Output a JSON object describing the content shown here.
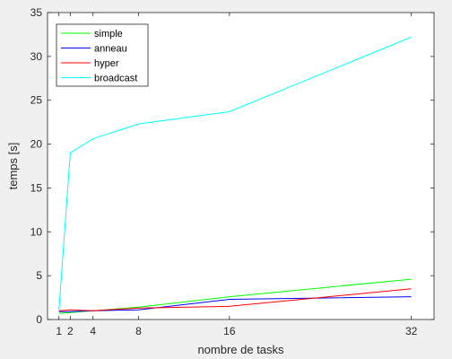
{
  "chart_data": {
    "type": "line",
    "title": "",
    "xlabel": "nombre de tasks",
    "ylabel": "temps [s]",
    "xlim": [
      0,
      34
    ],
    "ylim": [
      0,
      35
    ],
    "xticks": [
      1,
      2,
      4,
      8,
      16,
      32
    ],
    "yticks": [
      0,
      5,
      10,
      15,
      20,
      25,
      30,
      35
    ],
    "grid": false,
    "legend_position": "top-left",
    "x": [
      1,
      2,
      4,
      8,
      16,
      32
    ],
    "series": [
      {
        "name": "simple",
        "color": "#00ff00",
        "values": [
          0.7,
          0.8,
          1.0,
          1.4,
          2.6,
          4.6
        ]
      },
      {
        "name": "anneau",
        "color": "#0000ff",
        "values": [
          0.9,
          0.9,
          1.0,
          1.1,
          2.3,
          2.6
        ]
      },
      {
        "name": "hyper",
        "color": "#ff0000",
        "values": [
          1.0,
          1.1,
          1.0,
          1.3,
          1.5,
          3.5
        ]
      },
      {
        "name": "broadcast",
        "color": "#00ffff",
        "values": [
          1.0,
          19.0,
          20.6,
          22.3,
          23.7,
          32.2
        ]
      }
    ]
  }
}
